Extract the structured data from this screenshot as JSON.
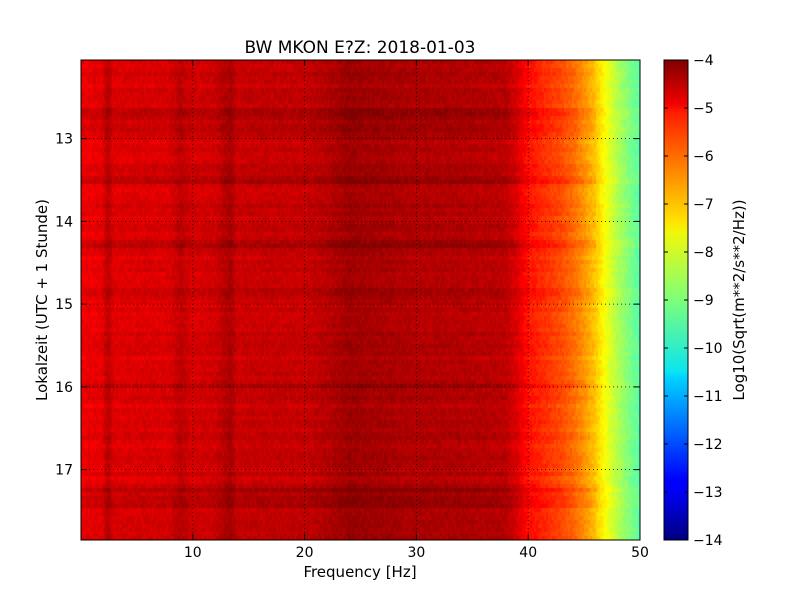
{
  "chart_data": {
    "type": "heatmap",
    "title": "BW MKON E?Z: 2018-01-03",
    "xlabel": "Frequency [Hz]",
    "ylabel": "Lokalzeit (UTC + 1 Stunde)",
    "xlim": [
      0,
      50
    ],
    "ylim": [
      12.05,
      17.85
    ],
    "y_inverted": true,
    "grid": true,
    "x_ticks": [
      10,
      20,
      30,
      40,
      50
    ],
    "y_ticks": [
      13,
      14,
      15,
      16,
      17
    ],
    "colorbar": {
      "label": "Log10(Sqrt(m**2/s**2/Hz))",
      "range": [
        -14,
        -4
      ],
      "ticks": [
        -4,
        -5,
        -6,
        -7,
        -8,
        -9,
        -10,
        -11,
        -12,
        -13,
        -14
      ],
      "colormap": "jet"
    },
    "spectrum_profile": {
      "frequency_hz": [
        0,
        2,
        2.5,
        3,
        5,
        8,
        9,
        10,
        12,
        13.5,
        14,
        16,
        20,
        22,
        24,
        25,
        27,
        30,
        33,
        36,
        38,
        39,
        40,
        42,
        43,
        44,
        45,
        46,
        47,
        48,
        49,
        50
      ],
      "log10_amplitude": [
        -5.1,
        -5.0,
        -4.55,
        -4.95,
        -4.9,
        -4.9,
        -4.6,
        -4.85,
        -4.8,
        -4.4,
        -4.75,
        -4.7,
        -4.7,
        -4.55,
        -4.3,
        -4.35,
        -4.4,
        -4.5,
        -4.5,
        -4.55,
        -4.6,
        -4.9,
        -5.4,
        -5.8,
        -6.0,
        -6.3,
        -6.7,
        -7.2,
        -7.9,
        -8.5,
        -9.0,
        -9.4
      ]
    },
    "time_modulation": [
      {
        "time": 12.7,
        "log10_change": 0.4
      },
      {
        "time": 12.85,
        "log10_change": 0.25
      },
      {
        "time": 13.5,
        "log10_change": 0.3
      },
      {
        "time": 14.3,
        "log10_change": 0.3
      },
      {
        "time": 14.9,
        "log10_change": 0.2
      },
      {
        "time": 16.0,
        "log10_change": 0.15
      },
      {
        "time": 17.25,
        "log10_change": 0.3
      },
      {
        "time": 17.4,
        "log10_change": 0.35
      },
      {
        "time": 17.6,
        "log10_change": 0.2
      }
    ]
  }
}
